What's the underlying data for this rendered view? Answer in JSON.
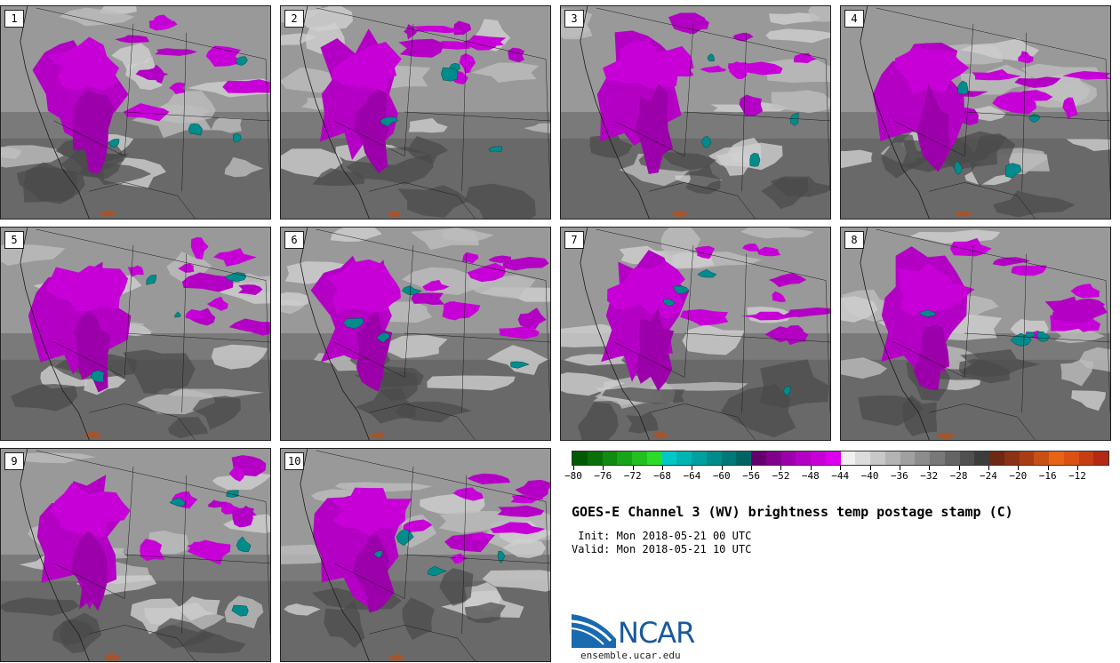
{
  "title": "GOES-E Channel 3 (WV) brightness temp postage stamp (C)",
  "init_line": " Init: Mon 2018-05-21 00 UTC",
  "valid_line": "Valid: Mon 2018-05-21 10 UTC",
  "logo_text": "NCAR",
  "logo_url": "ensemble.ucar.edu",
  "panels": [
    "1",
    "2",
    "3",
    "4",
    "5",
    "6",
    "7",
    "8",
    "9",
    "10"
  ],
  "colorbar": {
    "ticks": [
      "−80",
      "−76",
      "−72",
      "−68",
      "−64",
      "−60",
      "−56",
      "−52",
      "−48",
      "−44",
      "−40",
      "−36",
      "−32",
      "−28",
      "−24",
      "−20",
      "−16",
      "−12"
    ],
    "colors": [
      "#005a00",
      "#087008",
      "#108a10",
      "#18a418",
      "#20c020",
      "#28dc28",
      "#00c8c8",
      "#00b4b4",
      "#00a0a0",
      "#008c8c",
      "#007878",
      "#006464",
      "#64006e",
      "#80008c",
      "#9c00aa",
      "#b400c4",
      "#c800d8",
      "#dc00ec",
      "#f0f0f0",
      "#dcdcdc",
      "#c8c8c8",
      "#b4b4b4",
      "#a0a0a0",
      "#8c8c8c",
      "#787878",
      "#646464",
      "#505050",
      "#3c3c3c",
      "#6e2814",
      "#8c3214",
      "#aa3c14",
      "#c85014",
      "#e66414",
      "#dc5014",
      "#c83c14",
      "#b42814"
    ]
  }
}
